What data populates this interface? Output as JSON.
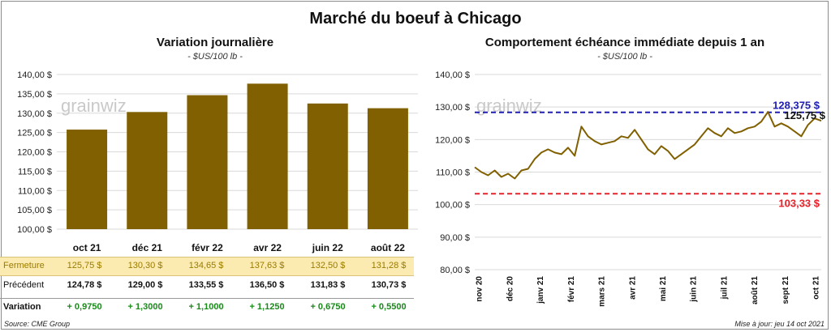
{
  "main_title": "Marché du boeuf à Chicago",
  "left_panel": {
    "title": "Variation  journalière",
    "subtitle": "- $US/100 lb -"
  },
  "right_panel": {
    "title": "Comportement  échéance immédiate depuis 1 an",
    "subtitle": "- $US/100 lb -"
  },
  "watermark": "grainwiz",
  "table": {
    "row_labels": {
      "close": "Fermeture",
      "prev": "Précédent",
      "var": "Variation"
    },
    "close": [
      "125,75  $",
      "130,30  $",
      "134,65  $",
      "137,63  $",
      "132,50  $",
      "131,28  $"
    ],
    "prev": [
      "124,78  $",
      "129,00  $",
      "133,55  $",
      "136,50  $",
      "131,83  $",
      "130,73  $"
    ],
    "var": [
      "+ 0,9750",
      "+ 1,3000",
      "+ 1,1000",
      "+ 1,1250",
      "+ 0,6750",
      "+ 0,5500"
    ]
  },
  "footer": {
    "source": "Source: CME Group",
    "updated": "Mise à jour: jeu 14 oct 2021"
  },
  "colors": {
    "bar": "#806000",
    "line": "#806000",
    "upper": "#1f1fb4",
    "lower": "#e8222a",
    "close_row_bg": "#fbebb0",
    "variation": "#1a8a1a"
  },
  "chart_data": [
    {
      "type": "bar",
      "categories": [
        "oct 21",
        "déc 21",
        "févr 22",
        "avr 22",
        "juin 22",
        "août 22"
      ],
      "values": [
        125.75,
        130.3,
        134.65,
        137.63,
        132.5,
        131.28
      ],
      "ylim": [
        100,
        140
      ],
      "yticks": [
        100,
        105,
        110,
        115,
        120,
        125,
        130,
        135,
        140
      ],
      "ytick_labels": [
        "100,00 $",
        "105,00 $",
        "110,00 $",
        "115,00 $",
        "120,00 $",
        "125,00 $",
        "130,00 $",
        "135,00 $",
        "140,00 $"
      ],
      "grid": true
    },
    {
      "type": "line",
      "ylim": [
        80,
        140
      ],
      "yticks": [
        80,
        90,
        100,
        110,
        120,
        130,
        140
      ],
      "ytick_labels": [
        "80,00 $",
        "90,00 $",
        "100,00 $",
        "110,00 $",
        "120,00 $",
        "130,00 $",
        "140,00 $"
      ],
      "xtick_labels": [
        "nov 20",
        "déc 20",
        "janv 21",
        "févr 21",
        "mars 21",
        "avr 21",
        "mai 21",
        "juin 21",
        "juil 21",
        "août 21",
        "sept 21",
        "oct 21"
      ],
      "x": [
        "2020-10-14",
        "2020-10-21",
        "2020-10-28",
        "2020-11-04",
        "2020-11-11",
        "2020-11-18",
        "2020-11-25",
        "2020-12-02",
        "2020-12-09",
        "2020-12-16",
        "2020-12-23",
        "2020-12-30",
        "2021-01-06",
        "2021-01-13",
        "2021-01-20",
        "2021-01-27",
        "2021-02-03",
        "2021-02-10",
        "2021-02-17",
        "2021-02-24",
        "2021-03-03",
        "2021-03-10",
        "2021-03-17",
        "2021-03-24",
        "2021-03-31",
        "2021-04-07",
        "2021-04-14",
        "2021-04-21",
        "2021-04-28",
        "2021-05-05",
        "2021-05-12",
        "2021-05-19",
        "2021-05-26",
        "2021-06-02",
        "2021-06-09",
        "2021-06-16",
        "2021-06-23",
        "2021-06-30",
        "2021-07-07",
        "2021-07-14",
        "2021-07-21",
        "2021-07-28",
        "2021-08-04",
        "2021-08-11",
        "2021-08-18",
        "2021-08-25",
        "2021-09-01",
        "2021-09-08",
        "2021-09-15",
        "2021-09-22",
        "2021-09-29",
        "2021-10-06",
        "2021-10-13"
      ],
      "y": [
        111.5,
        110.0,
        109.0,
        110.5,
        108.5,
        109.5,
        108.0,
        110.5,
        111.0,
        114.0,
        116.0,
        117.0,
        116.0,
        115.5,
        117.5,
        115.0,
        124.0,
        121.0,
        119.5,
        118.5,
        119.0,
        119.5,
        121.0,
        120.5,
        123.0,
        120.0,
        117.0,
        115.5,
        118.0,
        116.5,
        114.0,
        115.5,
        117.0,
        118.5,
        121.0,
        123.5,
        122.0,
        121.0,
        123.5,
        122.0,
        122.5,
        123.5,
        124.0,
        125.5,
        128.5,
        124.0,
        125.0,
        124.0,
        122.5,
        121.0,
        124.5,
        126.5,
        125.75
      ],
      "hlines": [
        {
          "value": 128.375,
          "label": "128,375 $"
        },
        {
          "value": 103.33,
          "label": "103,33 $"
        }
      ],
      "last_value_label": "125,75 $"
    }
  ]
}
